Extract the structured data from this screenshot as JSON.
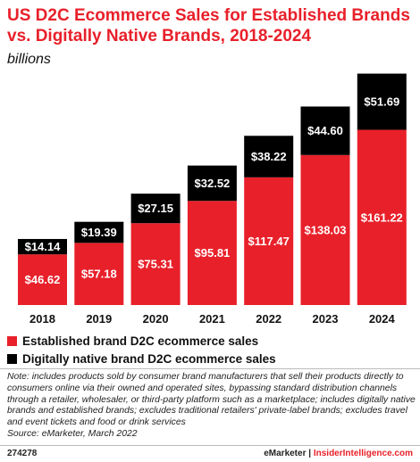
{
  "header": {
    "title": "US D2C Ecommerce Sales for Established Brands vs. Digitally Native Brands, 2018-2024",
    "subtitle": "billions"
  },
  "chart_data": {
    "type": "bar",
    "stacked": true,
    "categories": [
      "2018",
      "2019",
      "2020",
      "2021",
      "2022",
      "2023",
      "2024"
    ],
    "series": [
      {
        "name": "Established brand D2C ecommerce sales",
        "color": "#e8202a",
        "values": [
          46.62,
          57.18,
          75.31,
          95.81,
          117.47,
          138.03,
          161.22
        ],
        "labels": [
          "$46.62",
          "$57.18",
          "$75.31",
          "$95.81",
          "$117.47",
          "$138.03",
          "$161.22"
        ]
      },
      {
        "name": "Digitally native brand D2C ecommerce sales",
        "color": "#000000",
        "values": [
          14.14,
          19.39,
          27.15,
          32.52,
          38.22,
          44.6,
          51.69
        ],
        "labels": [
          "$14.14",
          "$19.39",
          "$27.15",
          "$32.52",
          "$38.22",
          "$44.60",
          "$51.69"
        ]
      }
    ],
    "ylim": [
      0,
      215
    ],
    "grid": false,
    "legend_position": "bottom-left"
  },
  "legend": {
    "items": [
      {
        "label": "Established brand D2C ecommerce sales",
        "color": "#e8202a"
      },
      {
        "label": "Digitally native brand D2C ecommerce sales",
        "color": "#000000"
      }
    ]
  },
  "footnote": {
    "note": "Note: includes products sold by consumer brand manufacturers that sell their products directly to consumers online via their owned and operated sites, bypassing standard distribution channels through a retailer, wholesaler, or third-party platform such as a marketplace; includes digitally native brands and established brands; excludes traditional retailers' private-label brands; excludes travel and event tickets and food or drink services",
    "source": "Source: eMarketer, March 2022"
  },
  "footer": {
    "id": "274278",
    "brand_left": "eMarketer",
    "separator": " | ",
    "brand_right": "InsiderIntelligence.com"
  }
}
